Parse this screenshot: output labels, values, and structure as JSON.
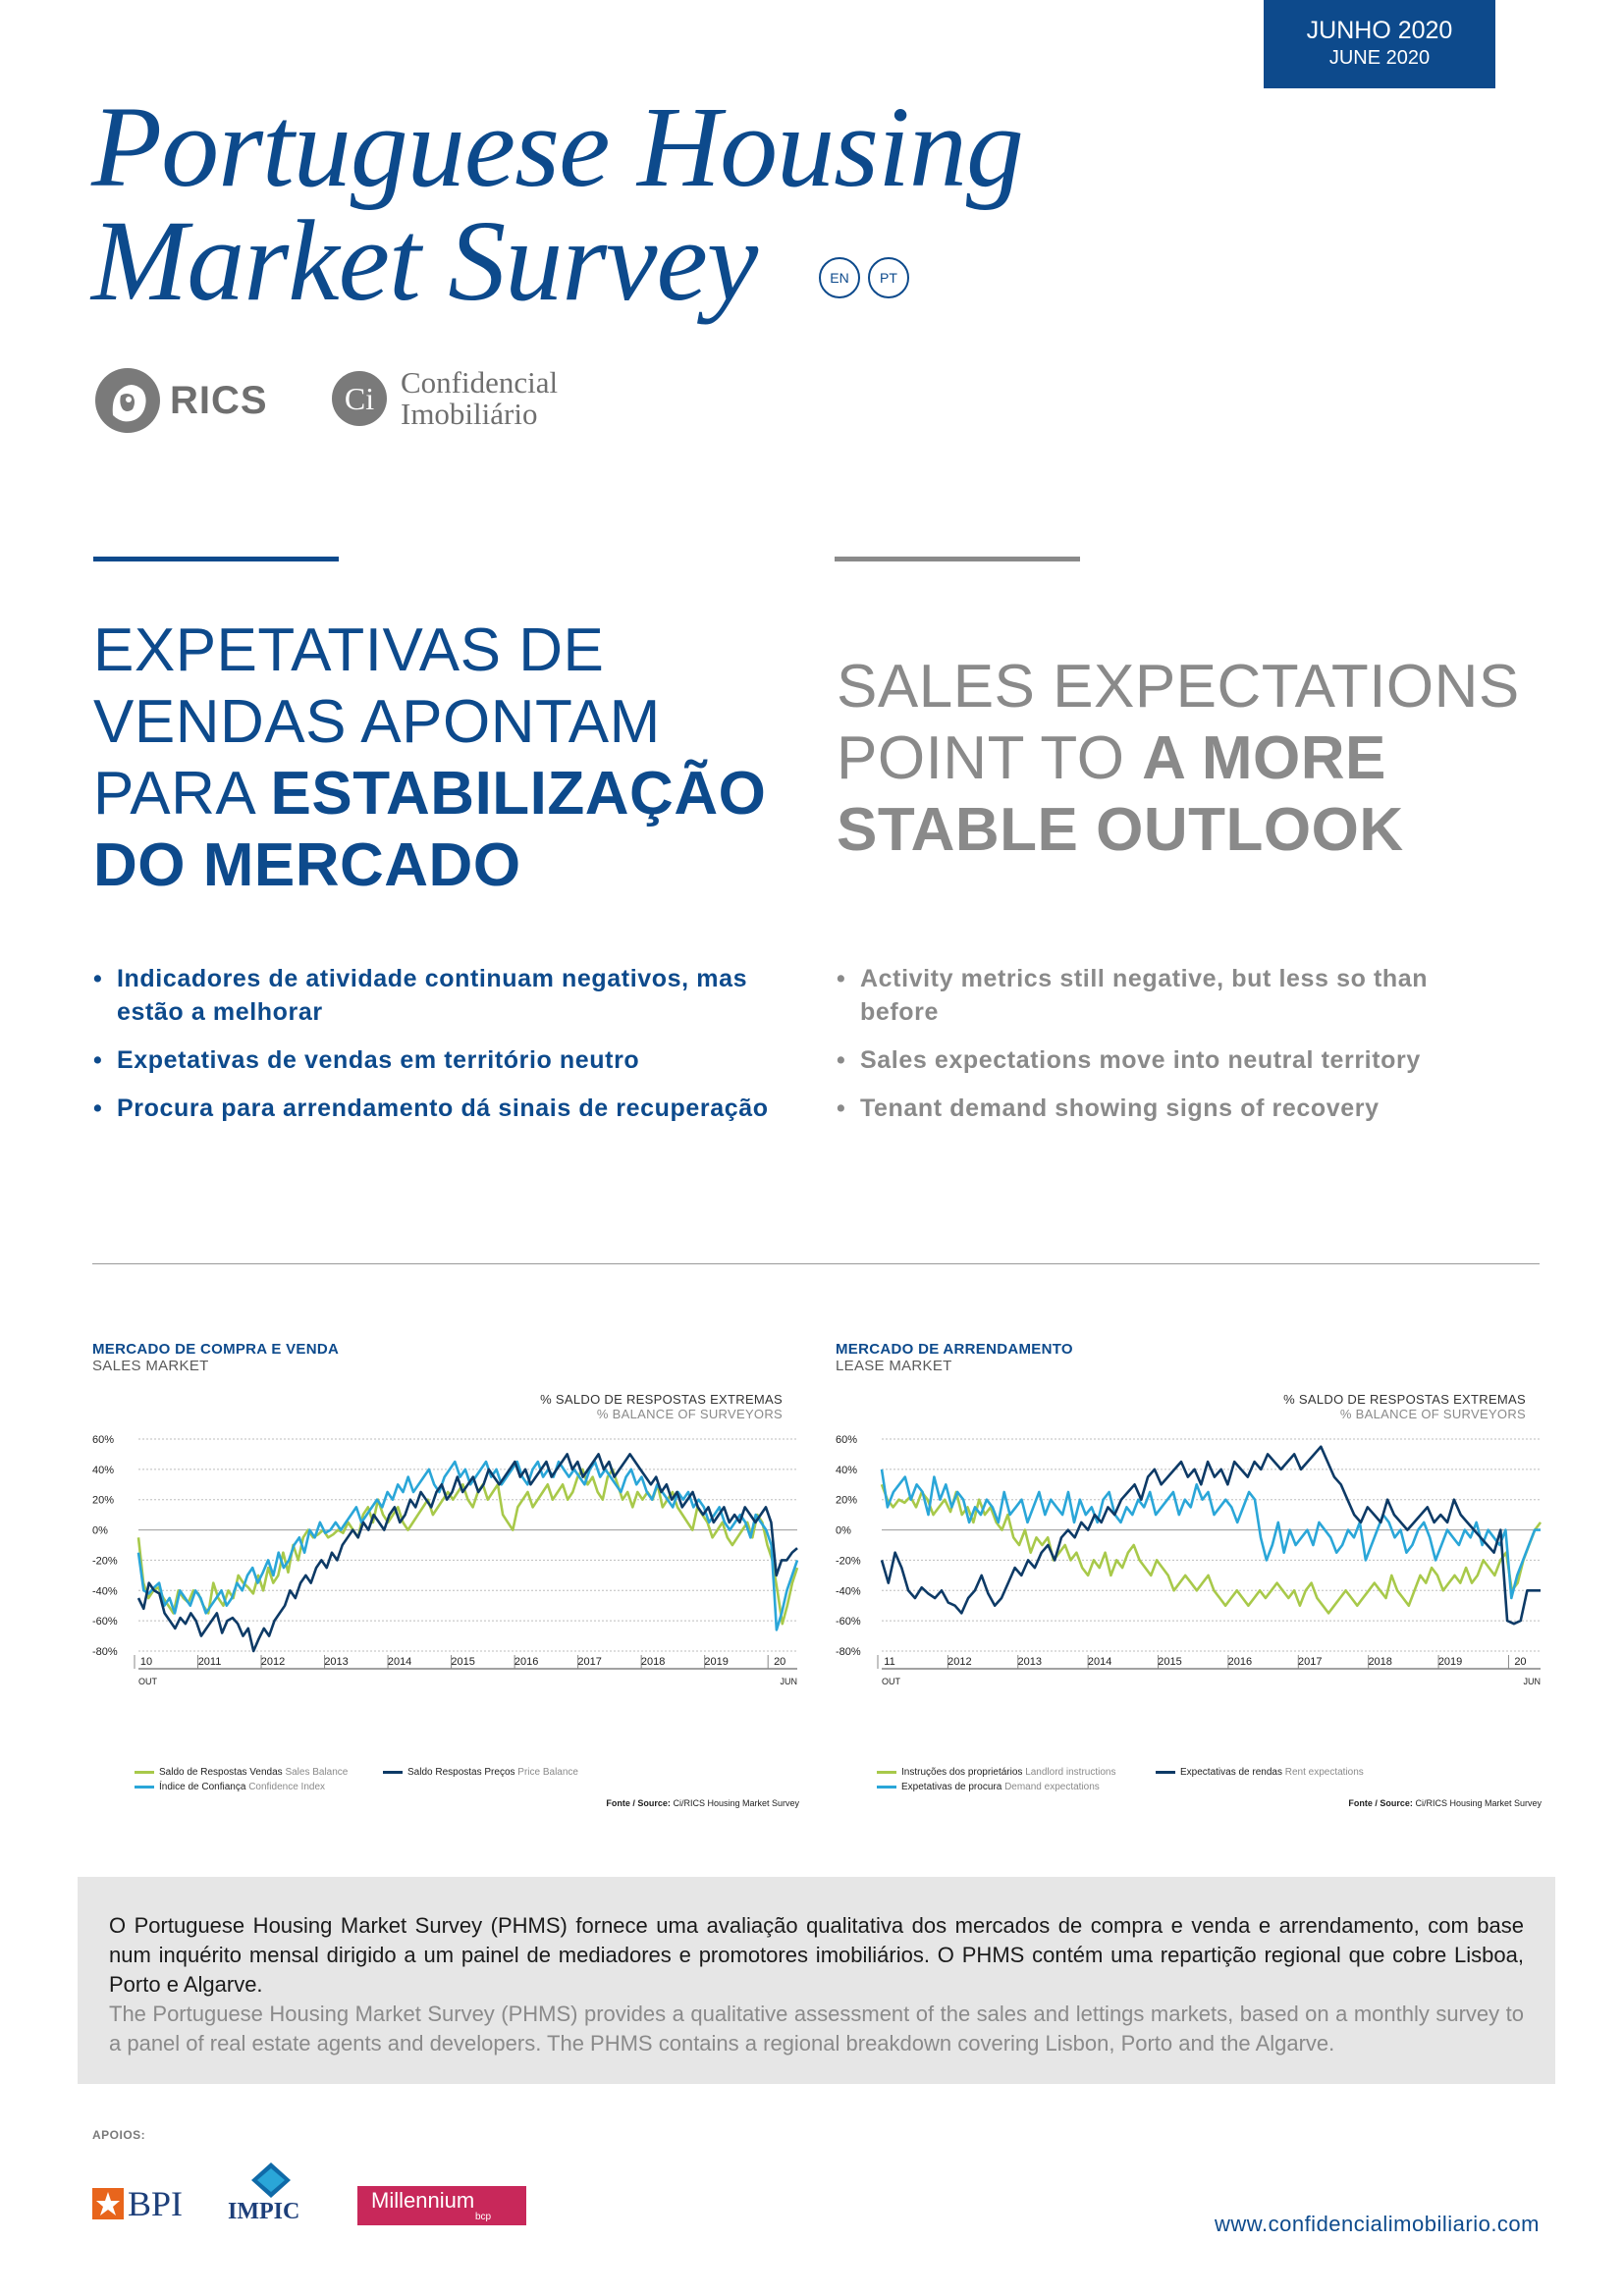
{
  "header": {
    "date_pt": "JUNHO 2020",
    "date_en": "JUNE 2020",
    "title_line1": "Portuguese Housing",
    "title_line2": "Market Survey",
    "lang_en": "EN",
    "lang_pt": "PT"
  },
  "logos": {
    "rics": "RICS",
    "ci_mark": "Ci",
    "ci_line1": "Confidencial",
    "ci_line2": "Imobiliário"
  },
  "headline_pt": {
    "line1": "EXPETATIVAS DE",
    "line2": "VENDAS APONTAM",
    "line3_plain": "PARA ",
    "line3_bold": "ESTABILIZAÇÃO",
    "line4_bold": "DO MERCADO"
  },
  "headline_en": {
    "line1": "SALES EXPECTATIONS",
    "line2_plain": "POINT TO ",
    "line2_bold": "A MORE",
    "line3_bold": "STABLE OUTLOOK"
  },
  "bullets_pt": [
    "Indicadores de atividade continuam negativos, mas estão a melhorar",
    "Expetativas de vendas em território neutro",
    "Procura para arrendamento dá sinais de recuperação"
  ],
  "bullets_en": [
    "Activity metrics still negative, but less so than before",
    "Sales expectations move into neutral territory",
    "Tenant demand showing signs of recovery"
  ],
  "chart_data": [
    {
      "type": "line",
      "title": "MERCADO DE COMPRA E VENDA",
      "subtitle": "SALES MARKET",
      "note_pt": "% SALDO DE RESPOSTAS EXTREMAS",
      "note_en": "% BALANCE OF SURVEYORS",
      "ylim": [
        -80,
        60
      ],
      "yticks": [
        "60%",
        "40%",
        "20%",
        "0%",
        "-20%",
        "-40%",
        "-60%",
        "-80%"
      ],
      "xticks": [
        "10",
        "2011",
        "2012",
        "2013",
        "2014",
        "2015",
        "2016",
        "2017",
        "2018",
        "2019",
        "20"
      ],
      "x_start_label": "OUT",
      "x_end_label": "JUN",
      "grid": true,
      "series": [
        {
          "name_pt": "Saldo de Respostas Vendas",
          "name_en": "Sales Balance",
          "color": "#a8c94a",
          "values": [
            -5,
            -35,
            -45,
            -40,
            -38,
            -45,
            -50,
            -55,
            -40,
            -45,
            -48,
            -40,
            -42,
            -50,
            -55,
            -35,
            -45,
            -50,
            -40,
            -45,
            -30,
            -35,
            -38,
            -42,
            -30,
            -40,
            -25,
            -35,
            -30,
            -15,
            -28,
            -10,
            -20,
            -5,
            0,
            -5,
            -3,
            0,
            -5,
            -3,
            0,
            -2,
            5,
            0,
            -5,
            10,
            15,
            5,
            20,
            10,
            5,
            10,
            15,
            5,
            0,
            5,
            10,
            15,
            20,
            10,
            15,
            20,
            25,
            20,
            25,
            30,
            20,
            15,
            25,
            30,
            20,
            25,
            30,
            10,
            5,
            0,
            15,
            20,
            25,
            15,
            20,
            25,
            30,
            20,
            25,
            30,
            20,
            25,
            35,
            40,
            30,
            35,
            25,
            20,
            35,
            40,
            30,
            20,
            25,
            15,
            25,
            20,
            25,
            20,
            30,
            15,
            20,
            25,
            15,
            10,
            5,
            0,
            15,
            10,
            5,
            -5,
            0,
            5,
            -5,
            -10,
            -5,
            0,
            5,
            -5,
            10,
            5,
            -10,
            -20,
            -40,
            -62,
            -50,
            -35,
            -25
          ]
        },
        {
          "name_pt": "Índice de Confiança",
          "name_en": "Confidence Index",
          "color": "#2aa6d8",
          "values": [
            -15,
            -40,
            -42,
            -38,
            -35,
            -50,
            -45,
            -55,
            -40,
            -45,
            -50,
            -40,
            -45,
            -55,
            -50,
            -45,
            -40,
            -50,
            -45,
            -35,
            -40,
            -30,
            -25,
            -35,
            -28,
            -20,
            -30,
            -15,
            -25,
            -20,
            -10,
            -5,
            -15,
            0,
            -5,
            5,
            -2,
            0,
            5,
            0,
            5,
            10,
            15,
            5,
            10,
            15,
            20,
            15,
            25,
            20,
            30,
            25,
            35,
            25,
            30,
            35,
            40,
            30,
            25,
            35,
            40,
            45,
            35,
            40,
            30,
            35,
            40,
            45,
            35,
            40,
            30,
            35,
            40,
            45,
            35,
            30,
            40,
            45,
            35,
            40,
            35,
            45,
            40,
            35,
            40,
            35,
            30,
            40,
            45,
            35,
            40,
            35,
            30,
            25,
            35,
            40,
            30,
            35,
            25,
            20,
            30,
            25,
            20,
            15,
            25,
            20,
            25,
            15,
            20,
            15,
            5,
            10,
            15,
            5,
            0,
            5,
            10,
            5,
            -5,
            10,
            5,
            0,
            -10,
            -66,
            -55,
            -40,
            -30,
            -20
          ]
        },
        {
          "name_pt": "Saldo Respostas Preços",
          "name_en": "Price Balance",
          "color": "#0d3a66",
          "values": [
            -45,
            -52,
            -35,
            -40,
            -42,
            -55,
            -60,
            -65,
            -58,
            -62,
            -55,
            -60,
            -70,
            -65,
            -60,
            -55,
            -68,
            -60,
            -58,
            -62,
            -70,
            -65,
            -80,
            -72,
            -65,
            -70,
            -60,
            -55,
            -50,
            -40,
            -45,
            -35,
            -30,
            -35,
            -25,
            -20,
            -25,
            -15,
            -20,
            -10,
            -5,
            0,
            -5,
            5,
            0,
            10,
            5,
            0,
            10,
            15,
            5,
            10,
            20,
            15,
            25,
            20,
            15,
            25,
            30,
            20,
            25,
            35,
            25,
            30,
            35,
            25,
            30,
            40,
            35,
            30,
            35,
            40,
            45,
            35,
            40,
            30,
            35,
            40,
            45,
            35,
            40,
            45,
            50,
            40,
            45,
            35,
            40,
            45,
            50,
            40,
            45,
            35,
            40,
            45,
            50,
            45,
            40,
            35,
            30,
            35,
            25,
            30,
            20,
            25,
            15,
            20,
            25,
            15,
            10,
            15,
            5,
            10,
            15,
            5,
            10,
            5,
            15,
            10,
            5,
            10,
            15,
            5,
            -30,
            -20,
            -20,
            -15,
            -12
          ]
        }
      ],
      "source_label": "Fonte / Source:",
      "source_text": "Ci/RICS Housing Market Survey"
    },
    {
      "type": "line",
      "title": "MERCADO DE ARRENDAMENTO",
      "subtitle": "LEASE MARKET",
      "note_pt": "% SALDO DE RESPOSTAS EXTREMAS",
      "note_en": "% BALANCE OF SURVEYORS",
      "ylim": [
        -80,
        60
      ],
      "yticks": [
        "60%",
        "40%",
        "20%",
        "0%",
        "-20%",
        "-40%",
        "-60%",
        "-80%"
      ],
      "xticks": [
        "11",
        "2012",
        "2013",
        "2014",
        "2015",
        "2016",
        "2017",
        "2018",
        "2019",
        "20"
      ],
      "x_start_label": "OUT",
      "x_end_label": "JUN",
      "grid": true,
      "series": [
        {
          "name_pt": "Instruções dos proprietários",
          "name_en": "Landlord instructions",
          "color": "#a8c94a",
          "values": [
            30,
            20,
            15,
            20,
            18,
            22,
            15,
            25,
            20,
            10,
            15,
            20,
            12,
            25,
            10,
            15,
            5,
            20,
            10,
            15,
            5,
            0,
            10,
            -5,
            -10,
            0,
            -15,
            -5,
            -10,
            -5,
            -20,
            -15,
            -10,
            -20,
            -15,
            -25,
            -30,
            -20,
            -25,
            -15,
            -30,
            -20,
            -25,
            -15,
            -10,
            -20,
            -25,
            -30,
            -20,
            -25,
            -30,
            -40,
            -35,
            -30,
            -35,
            -40,
            -35,
            -30,
            -40,
            -45,
            -50,
            -45,
            -40,
            -45,
            -50,
            -45,
            -40,
            -45,
            -40,
            -35,
            -40,
            -45,
            -40,
            -50,
            -40,
            -35,
            -45,
            -50,
            -55,
            -50,
            -45,
            -40,
            -45,
            -50,
            -45,
            -40,
            -35,
            -40,
            -45,
            -30,
            -40,
            -45,
            -50,
            -40,
            -30,
            -35,
            -25,
            -30,
            -40,
            -35,
            -30,
            -35,
            -25,
            -35,
            -30,
            -20,
            -25,
            -30,
            -20,
            -15,
            -40,
            -35,
            -20,
            -10,
            0,
            5
          ]
        },
        {
          "name_pt": "Expetativas de procura",
          "name_en": "Demand expectations",
          "color": "#2aa6d8",
          "values": [
            40,
            15,
            25,
            30,
            35,
            20,
            30,
            25,
            10,
            35,
            20,
            30,
            15,
            25,
            20,
            5,
            15,
            10,
            20,
            15,
            5,
            25,
            10,
            15,
            20,
            5,
            15,
            25,
            10,
            20,
            15,
            10,
            25,
            5,
            20,
            10,
            15,
            5,
            20,
            25,
            10,
            5,
            15,
            10,
            20,
            15,
            25,
            10,
            15,
            20,
            25,
            10,
            20,
            15,
            30,
            20,
            25,
            10,
            15,
            20,
            15,
            5,
            15,
            25,
            20,
            -5,
            -20,
            -10,
            5,
            -15,
            0,
            -10,
            -5,
            0,
            -10,
            5,
            0,
            -5,
            -15,
            -10,
            0,
            -5,
            5,
            -20,
            -10,
            0,
            10,
            5,
            -5,
            0,
            -15,
            -10,
            0,
            5,
            -5,
            -20,
            -10,
            0,
            -5,
            -10,
            0,
            -5,
            5,
            -10,
            0,
            -5,
            -10,
            0,
            -45,
            -30,
            -20,
            -10,
            0,
            0
          ]
        },
        {
          "name_pt": "Expectativas de rendas",
          "name_en": "Rent expectations",
          "color": "#0d3a66",
          "values": [
            -20,
            -35,
            -15,
            -25,
            -40,
            -45,
            -38,
            -42,
            -45,
            -40,
            -48,
            -50,
            -55,
            -45,
            -40,
            -30,
            -42,
            -50,
            -45,
            -35,
            -25,
            -30,
            -20,
            -25,
            -15,
            -10,
            -20,
            -5,
            0,
            -5,
            5,
            0,
            10,
            5,
            15,
            10,
            20,
            25,
            30,
            20,
            35,
            40,
            30,
            35,
            40,
            45,
            35,
            40,
            30,
            45,
            35,
            40,
            30,
            45,
            40,
            35,
            45,
            40,
            50,
            45,
            40,
            45,
            50,
            40,
            45,
            50,
            55,
            45,
            35,
            30,
            20,
            10,
            5,
            15,
            10,
            5,
            20,
            10,
            5,
            0,
            5,
            10,
            15,
            5,
            10,
            5,
            20,
            10,
            5,
            0,
            -5,
            -10,
            -15,
            0,
            -60,
            -62,
            -60,
            -40,
            -40,
            -40
          ]
        }
      ],
      "source_label": "Fonte / Source:",
      "source_text": "Ci/RICS Housing Market Survey"
    }
  ],
  "info": {
    "pt": "O Portuguese Housing Market Survey (PHMS) fornece uma avaliação qualitativa dos mercados de compra e venda e arrendamento, com base num inquérito mensal dirigido a um painel de mediadores e promotores imobiliários. O PHMS contém uma repartição regional que cobre Lisboa, Porto e Algarve.",
    "en": "The Portuguese Housing Market Survey (PHMS) provides a qualitative assessment of the sales and lettings markets, based on a monthly survey to a panel of real estate agents and developers. The PHMS contains a regional breakdown covering Lisbon, Porto and the Algarve."
  },
  "footer": {
    "apoios": "APOIOS:",
    "bpi": "BPI",
    "impic": "IMPIC",
    "millennium": "Millennium",
    "millennium_sub": "bcp",
    "website": "www.confidencialimobiliario.com"
  },
  "colors": {
    "brand_blue": "#0d4a8c",
    "grey_text": "#8a8a8a",
    "line_green": "#a8c94a",
    "line_cyan": "#2aa6d8",
    "line_navy": "#0d3a66"
  }
}
